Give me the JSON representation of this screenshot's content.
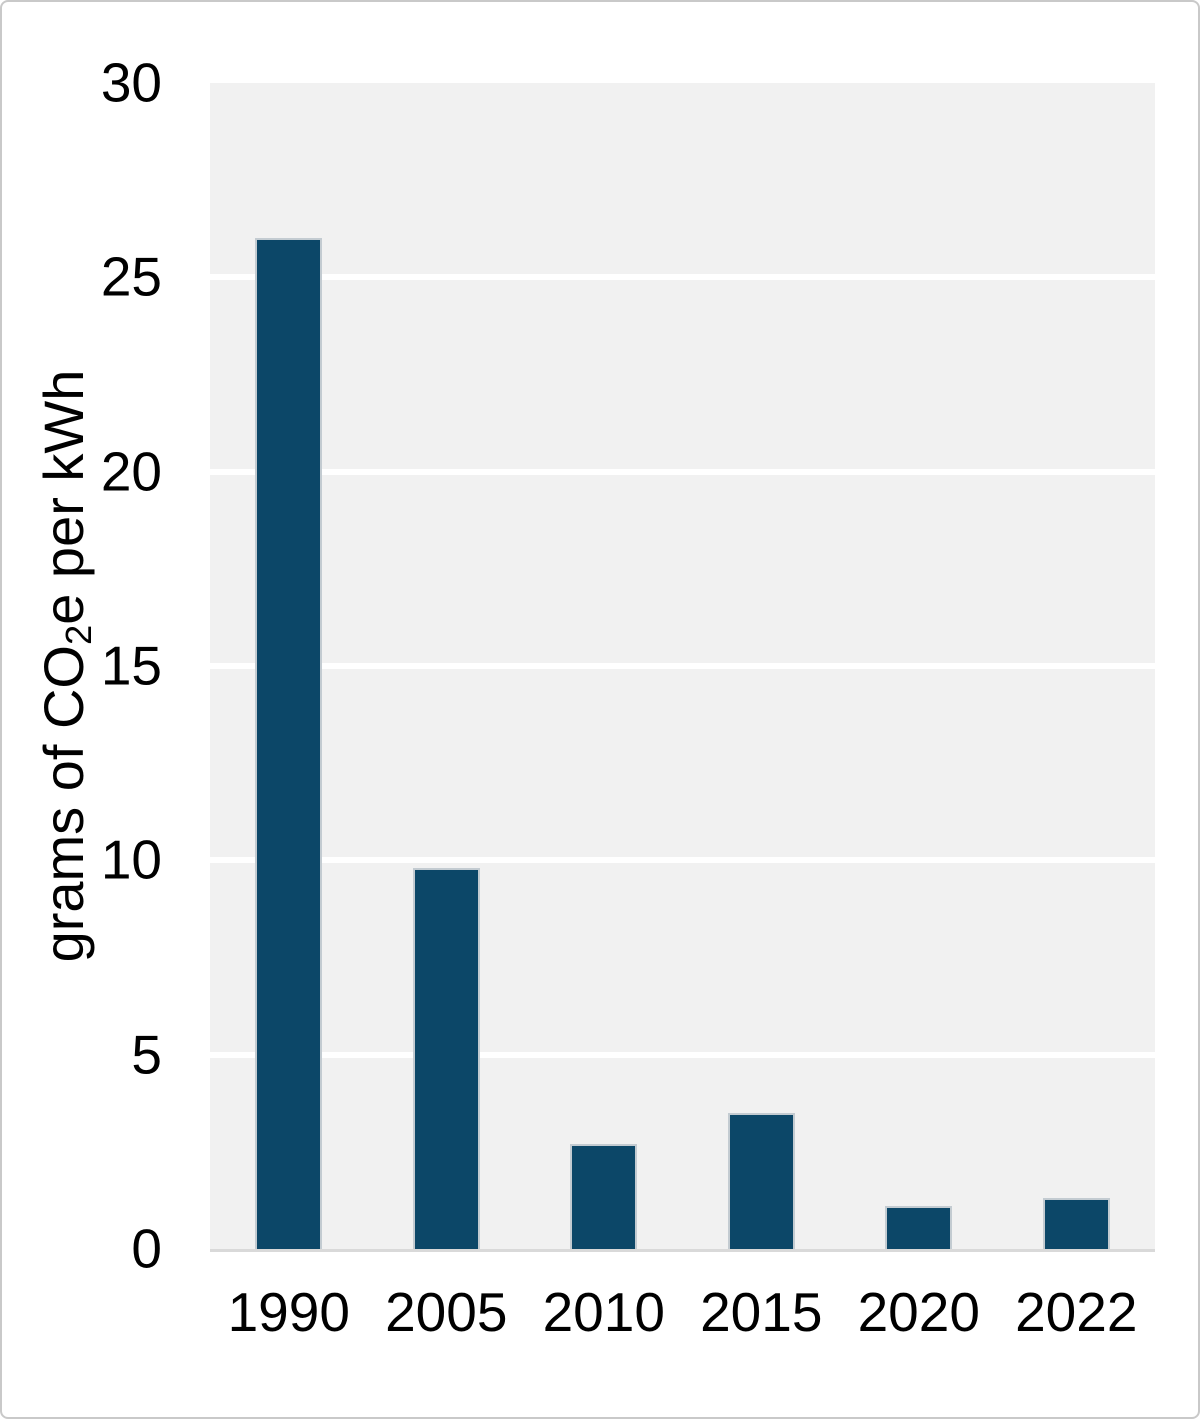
{
  "chart_data": {
    "type": "bar",
    "title": "",
    "categories": [
      "1990",
      "2005",
      "2010",
      "2015",
      "2020",
      "2022"
    ],
    "values": [
      26,
      9.8,
      2.7,
      3.5,
      1.1,
      1.3
    ],
    "xlabel": "",
    "ylabel_text": "grams of CO2e per kWh",
    "ylabel": {
      "pre": "grams of CO",
      "sub": "2",
      "post": "e per kWh"
    },
    "yticks": [
      0,
      5,
      10,
      15,
      20,
      25,
      30
    ],
    "ylim": [
      0,
      30
    ],
    "grid": "horizontal-white-lines",
    "legend_position": "none",
    "colors": {
      "bar": "#0c4768",
      "bar_edge": "#c3cbd1",
      "plot_background": "#f1f1f1",
      "gridline": "#ffffff",
      "axis_line": "#d9d9d9",
      "figure_border": "#c9c9c9",
      "text": "#000000"
    }
  }
}
